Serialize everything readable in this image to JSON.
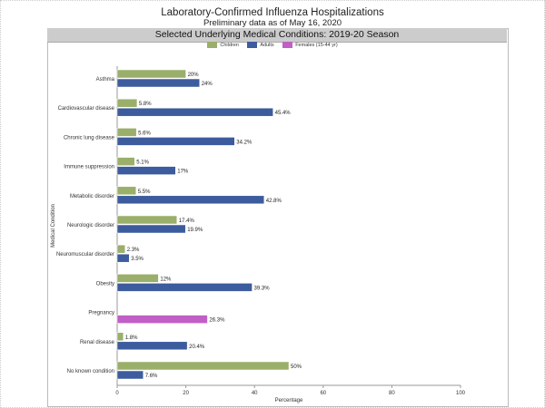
{
  "chart_data": {
    "type": "bar",
    "orientation": "horizontal",
    "title": "Laboratory-Confirmed Influenza Hospitalizations",
    "subtitle": "Preliminary data as of May 16, 2020",
    "panel_title": "Selected Underlying Medical Conditions: 2019-20 Season",
    "xlabel": "Percentage",
    "ylabel": "Medical Condition",
    "xlim": [
      0,
      100
    ],
    "xticks": [
      0,
      20,
      40,
      60,
      80,
      100
    ],
    "legend_position": "top",
    "categories": [
      "Asthma",
      "Cardiovascular disease",
      "Chronic lung disease",
      "Immune suppression",
      "Metabolic disorder",
      "Neurologic disorder",
      "Neuromuscular disorder",
      "Obesity",
      "Pregnancy",
      "Renal disease",
      "No known condition"
    ],
    "series": [
      {
        "name": "Children",
        "color": "#9aaf6a",
        "values": [
          20,
          5.8,
          5.6,
          5.1,
          5.5,
          17.4,
          2.3,
          12,
          null,
          1.8,
          50
        ],
        "labels": [
          "20%",
          "5.8%",
          "5.6%",
          "5.1%",
          "5.5%",
          "17.4%",
          "2.3%",
          "12%",
          null,
          "1.8%",
          "50%"
        ]
      },
      {
        "name": "Adults",
        "color": "#3d5c9e",
        "values": [
          24,
          45.4,
          34.2,
          17,
          42.8,
          19.9,
          3.5,
          39.3,
          null,
          20.4,
          7.6
        ],
        "labels": [
          "24%",
          "45.4%",
          "34.2%",
          "17%",
          "42.8%",
          "19.9%",
          "3.5%",
          "39.3%",
          null,
          "20.4%",
          "7.6%"
        ]
      },
      {
        "name": "Females (15-44 yr)",
        "color": "#c060c4",
        "values": [
          null,
          null,
          null,
          null,
          null,
          null,
          null,
          null,
          26.3,
          null,
          null
        ],
        "labels": [
          null,
          null,
          null,
          null,
          null,
          null,
          null,
          null,
          "26.3%",
          null,
          null
        ]
      }
    ]
  }
}
